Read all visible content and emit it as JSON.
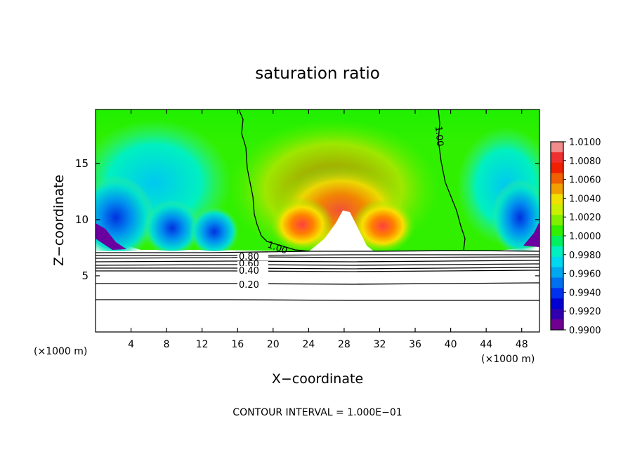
{
  "chart_data": {
    "type": "heatmap",
    "title": "saturation ratio",
    "xlabel": "X−coordinate",
    "ylabel": "Z−coordinate",
    "x_unit_left": "(×1000 m)",
    "x_unit_right": "(×1000 m)",
    "xlim": [
      0,
      50
    ],
    "ylim": [
      0,
      19.8
    ],
    "x_ticks": [
      4,
      8,
      12,
      16,
      20,
      24,
      28,
      32,
      36,
      40,
      44,
      48
    ],
    "y_ticks": [
      5,
      10,
      15
    ],
    "footer": "CONTOUR INTERVAL = 1.000E−01",
    "colorbar": {
      "min": 0.99,
      "max": 1.01,
      "tick_labels": [
        "1.0100",
        "1.0080",
        "1.0060",
        "1.0040",
        "1.0020",
        "1.0000",
        "0.9980",
        "0.9960",
        "0.9940",
        "0.9920",
        "0.9900"
      ],
      "colors": [
        "#f08c8c",
        "#f03030",
        "#f02000",
        "#f06000",
        "#f0a000",
        "#f0e000",
        "#c8f000",
        "#80f000",
        "#30f000",
        "#00f060",
        "#00f0c0",
        "#00d8f0",
        "#00a8f0",
        "#0070f0",
        "#0030f0",
        "#0000d0",
        "#3000b0",
        "#700090"
      ]
    },
    "contours": [
      {
        "label": "1.00",
        "level": 1.0
      },
      {
        "label": "0.80",
        "level": 0.8
      },
      {
        "label": "0.60",
        "level": 0.6
      },
      {
        "label": "0.40",
        "level": 0.4
      },
      {
        "label": "0.20",
        "level": 0.2
      }
    ]
  }
}
